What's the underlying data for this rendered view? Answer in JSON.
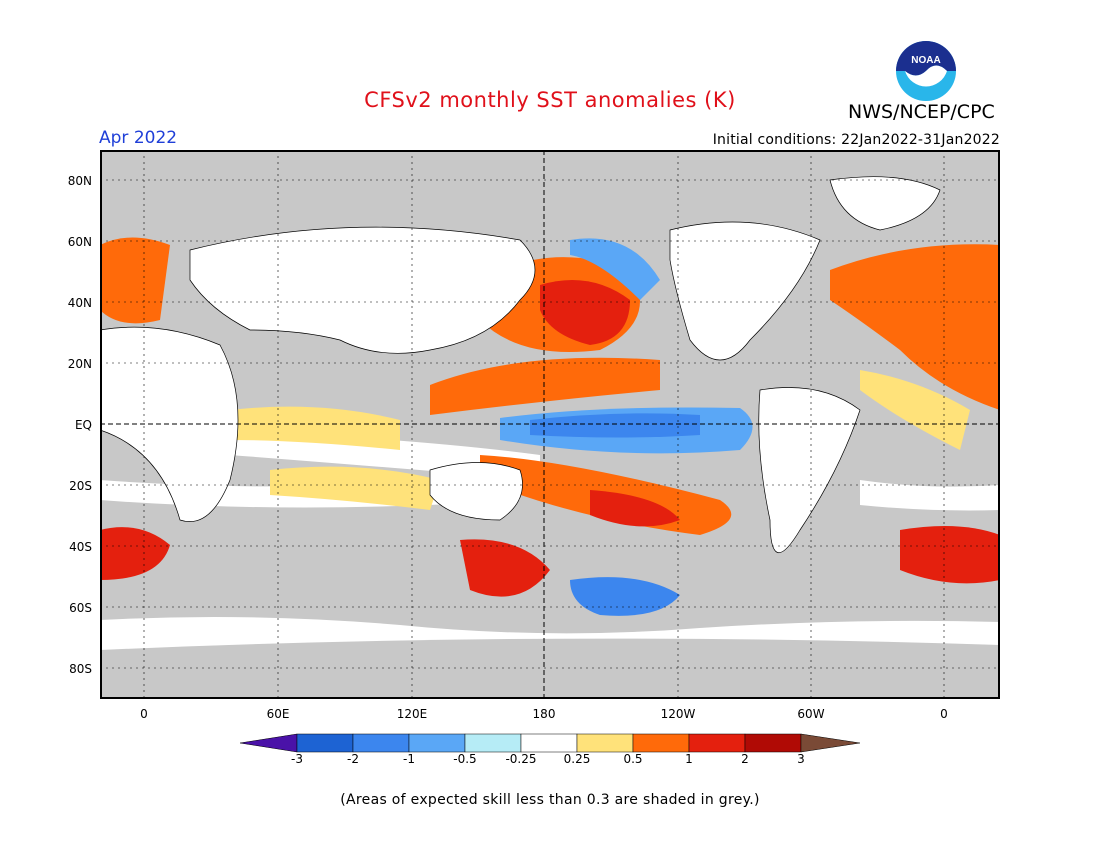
{
  "header": {
    "title": "CFSv2 monthly SST anomalies (K)",
    "agency": "NWS/NCEP/CPC",
    "logo_text": "NOAA",
    "month": "Apr 2022",
    "initial_conditions": "Initial conditions: 22Jan2022-31Jan2022"
  },
  "map": {
    "lat_labels": [
      "80N",
      "60N",
      "40N",
      "20N",
      "EQ",
      "20S",
      "40S",
      "60S",
      "80S"
    ],
    "lon_labels": [
      "0",
      "60E",
      "120E",
      "180",
      "120W",
      "60W",
      "0"
    ],
    "grey_color": "#c8c8c8",
    "land_color": "#ffffff"
  },
  "colorbar": {
    "labels": [
      "-3",
      "-2",
      "-1",
      "-0.5",
      "-0.25",
      "0.25",
      "0.5",
      "1",
      "2",
      "3"
    ],
    "colors": [
      "#4a12a8",
      "#1d63d3",
      "#3c86ee",
      "#5aa7f6",
      "#b6ecf6",
      "#ffffff",
      "#ffe27a",
      "#ff6a0a",
      "#e4200e",
      "#b00a05",
      "#7a4a36"
    ]
  },
  "footer": {
    "note": "(Areas of expected skill less than 0.3 are shaded in grey.)"
  }
}
